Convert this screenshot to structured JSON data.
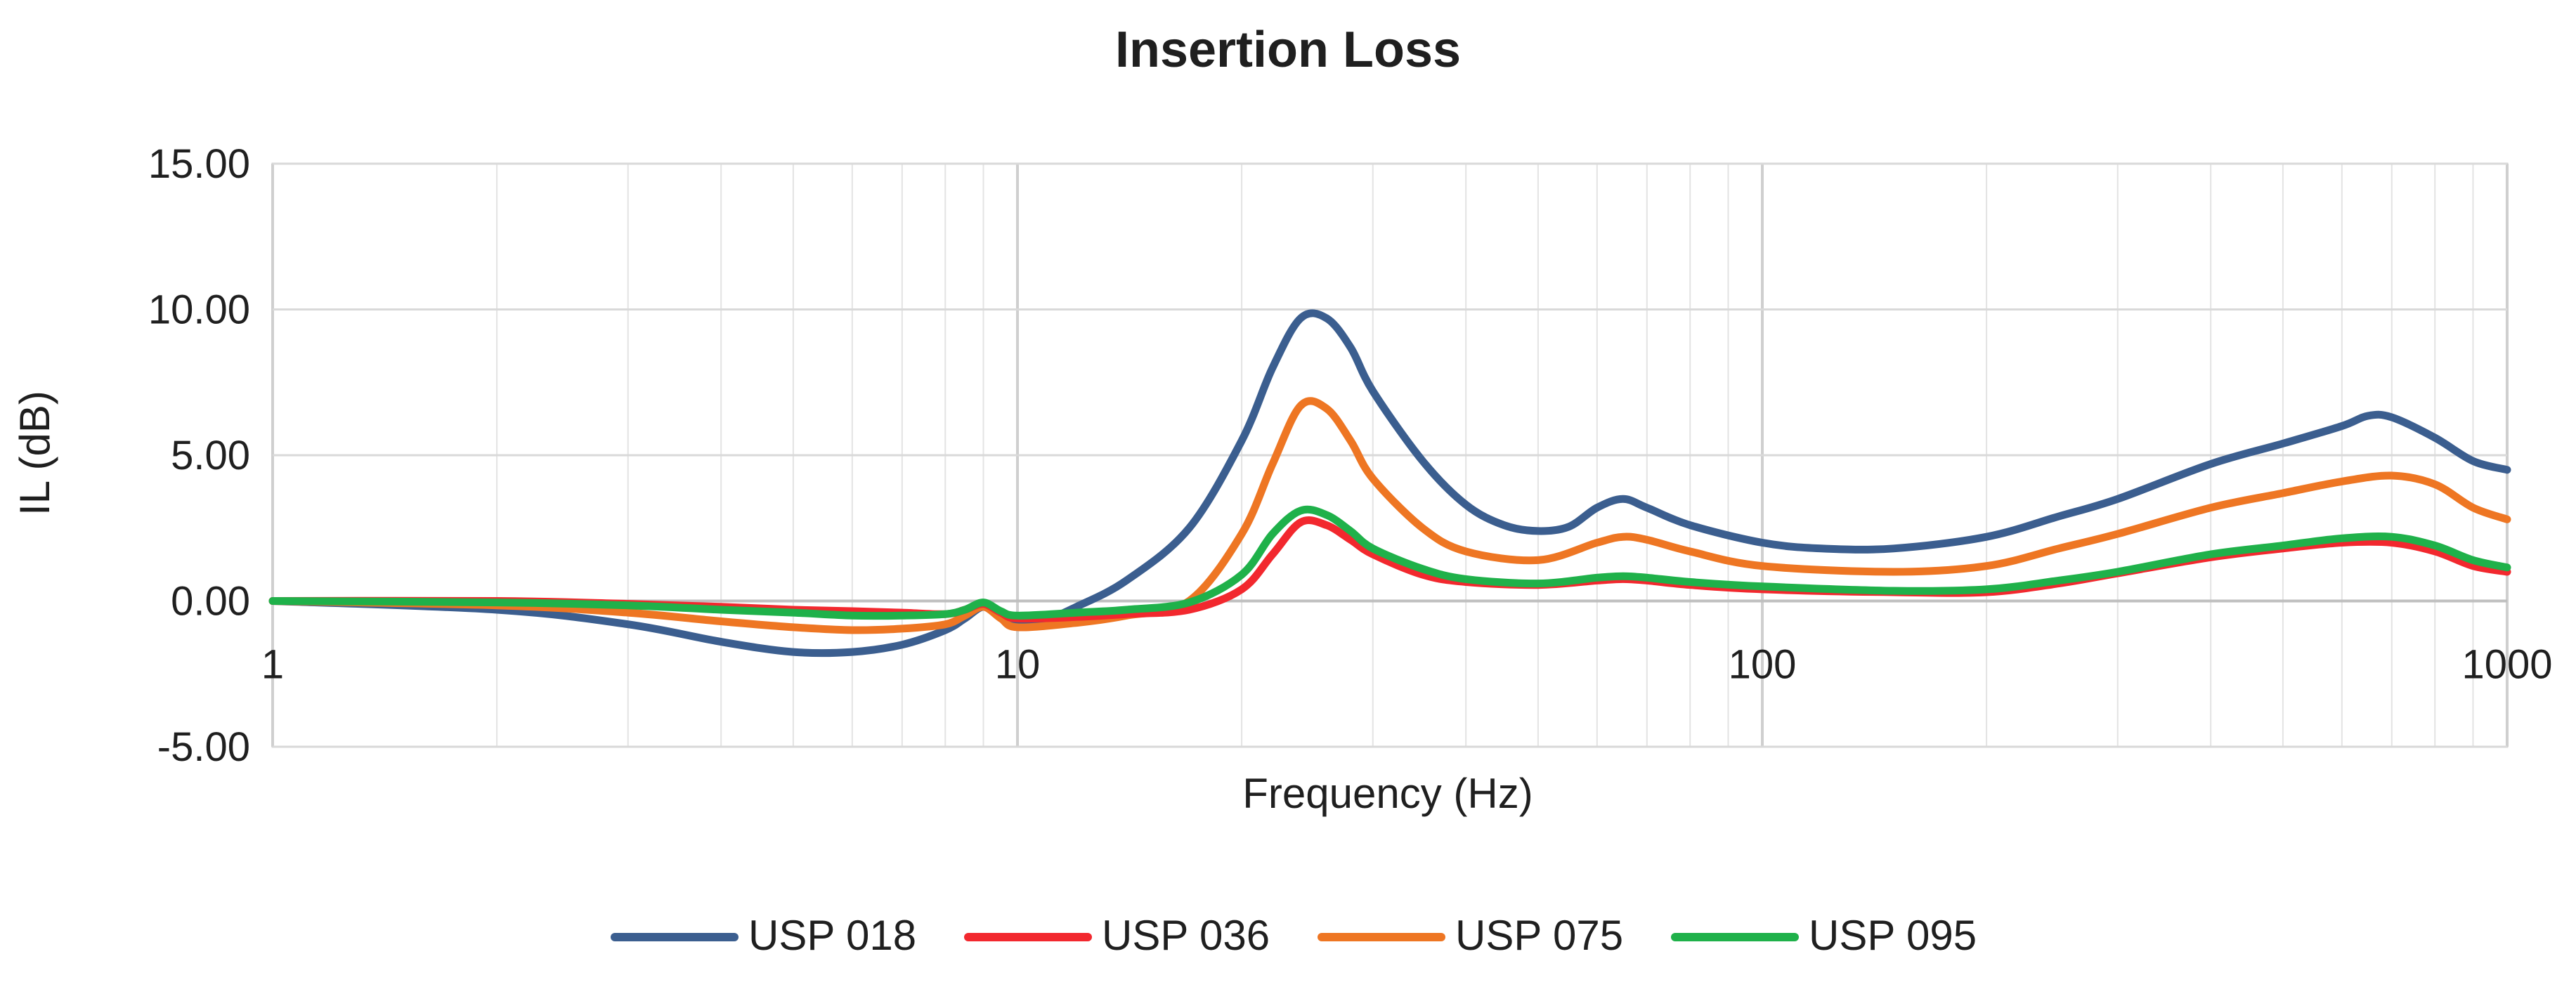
{
  "chart_data": {
    "type": "line",
    "title": "Insertion Loss",
    "xlabel": "Frequency (Hz)",
    "ylabel": "IL (dB)",
    "xscale": "log",
    "xlim": [
      1,
      1000
    ],
    "ylim": [
      -5,
      15
    ],
    "x_ticks": [
      1,
      10,
      100,
      1000
    ],
    "x_tick_labels": [
      "1",
      "10",
      "100",
      "1000"
    ],
    "y_ticks": [
      -5,
      0,
      5,
      10,
      15
    ],
    "y_tick_labels": [
      "-5.00",
      "0.00",
      "5.00",
      "10.00",
      "15.00"
    ],
    "grid": true,
    "legend_position": "bottom",
    "series": [
      {
        "name": "USP 018",
        "color": "#3B5E8F",
        "x": [
          1,
          2,
          3,
          4,
          5,
          6,
          7,
          8,
          8.5,
          9,
          9.5,
          10,
          11,
          12,
          14,
          17,
          20,
          22,
          24,
          26,
          28,
          30,
          35,
          40,
          45,
          50,
          55,
          60,
          65,
          70,
          80,
          100,
          120,
          150,
          200,
          250,
          300,
          400,
          500,
          600,
          650,
          700,
          800,
          900,
          1000
        ],
        "y": [
          0,
          -0.3,
          -0.8,
          -1.4,
          -1.75,
          -1.75,
          -1.5,
          -1.0,
          -0.6,
          -0.2,
          -0.5,
          -0.75,
          -0.6,
          -0.2,
          0.7,
          2.5,
          5.5,
          8.0,
          9.7,
          9.7,
          8.7,
          7.2,
          4.8,
          3.3,
          2.6,
          2.4,
          2.55,
          3.2,
          3.5,
          3.2,
          2.6,
          2.0,
          1.8,
          1.8,
          2.2,
          2.9,
          3.5,
          4.7,
          5.4,
          6.0,
          6.35,
          6.3,
          5.6,
          4.8,
          4.5
        ]
      },
      {
        "name": "USP 036",
        "color": "#F2282E",
        "x": [
          1,
          2,
          3,
          4,
          5,
          6,
          7,
          8,
          8.5,
          9,
          9.5,
          10,
          12,
          14,
          17,
          20,
          22,
          24,
          26,
          28,
          30,
          35,
          40,
          50,
          60,
          65,
          70,
          80,
          100,
          150,
          200,
          250,
          300,
          400,
          500,
          600,
          700,
          800,
          900,
          1000
        ],
        "y": [
          0,
          0,
          -0.1,
          -0.2,
          -0.3,
          -0.35,
          -0.4,
          -0.45,
          -0.3,
          -0.1,
          -0.4,
          -0.6,
          -0.55,
          -0.45,
          -0.3,
          0.4,
          1.6,
          2.7,
          2.6,
          2.1,
          1.6,
          0.9,
          0.65,
          0.55,
          0.7,
          0.75,
          0.7,
          0.55,
          0.4,
          0.3,
          0.3,
          0.6,
          0.95,
          1.5,
          1.8,
          2.0,
          2.0,
          1.7,
          1.2,
          1.0
        ]
      },
      {
        "name": "USP 075",
        "color": "#EE7623",
        "x": [
          1,
          2,
          3,
          4,
          5,
          6,
          7,
          8,
          8.5,
          9,
          9.5,
          10,
          12,
          14,
          17,
          20,
          22,
          24,
          26,
          28,
          30,
          35,
          40,
          50,
          60,
          65,
          70,
          80,
          100,
          150,
          200,
          250,
          300,
          400,
          500,
          600,
          700,
          800,
          900,
          1000
        ],
        "y": [
          0,
          -0.15,
          -0.4,
          -0.7,
          -0.9,
          -1.0,
          -0.95,
          -0.8,
          -0.5,
          -0.2,
          -0.6,
          -0.9,
          -0.75,
          -0.5,
          0.0,
          2.3,
          4.7,
          6.7,
          6.6,
          5.5,
          4.2,
          2.5,
          1.7,
          1.4,
          2.0,
          2.2,
          2.1,
          1.7,
          1.2,
          1.0,
          1.2,
          1.8,
          2.3,
          3.2,
          3.7,
          4.1,
          4.3,
          4.0,
          3.2,
          2.8
        ]
      },
      {
        "name": "USP 095",
        "color": "#1FB14A",
        "x": [
          1,
          2,
          3,
          4,
          5,
          6,
          7,
          8,
          8.5,
          9,
          9.5,
          10,
          12,
          14,
          17,
          20,
          22,
          24,
          26,
          28,
          30,
          35,
          40,
          50,
          60,
          65,
          70,
          80,
          100,
          150,
          200,
          250,
          300,
          400,
          500,
          600,
          700,
          800,
          900,
          1000
        ],
        "y": [
          0,
          -0.05,
          -0.15,
          -0.3,
          -0.4,
          -0.5,
          -0.5,
          -0.45,
          -0.3,
          -0.05,
          -0.35,
          -0.5,
          -0.4,
          -0.3,
          -0.05,
          0.9,
          2.3,
          3.1,
          2.95,
          2.4,
          1.8,
          1.1,
          0.75,
          0.6,
          0.8,
          0.85,
          0.8,
          0.65,
          0.5,
          0.35,
          0.4,
          0.7,
          1.0,
          1.6,
          1.9,
          2.15,
          2.2,
          1.9,
          1.4,
          1.15
        ]
      }
    ]
  }
}
